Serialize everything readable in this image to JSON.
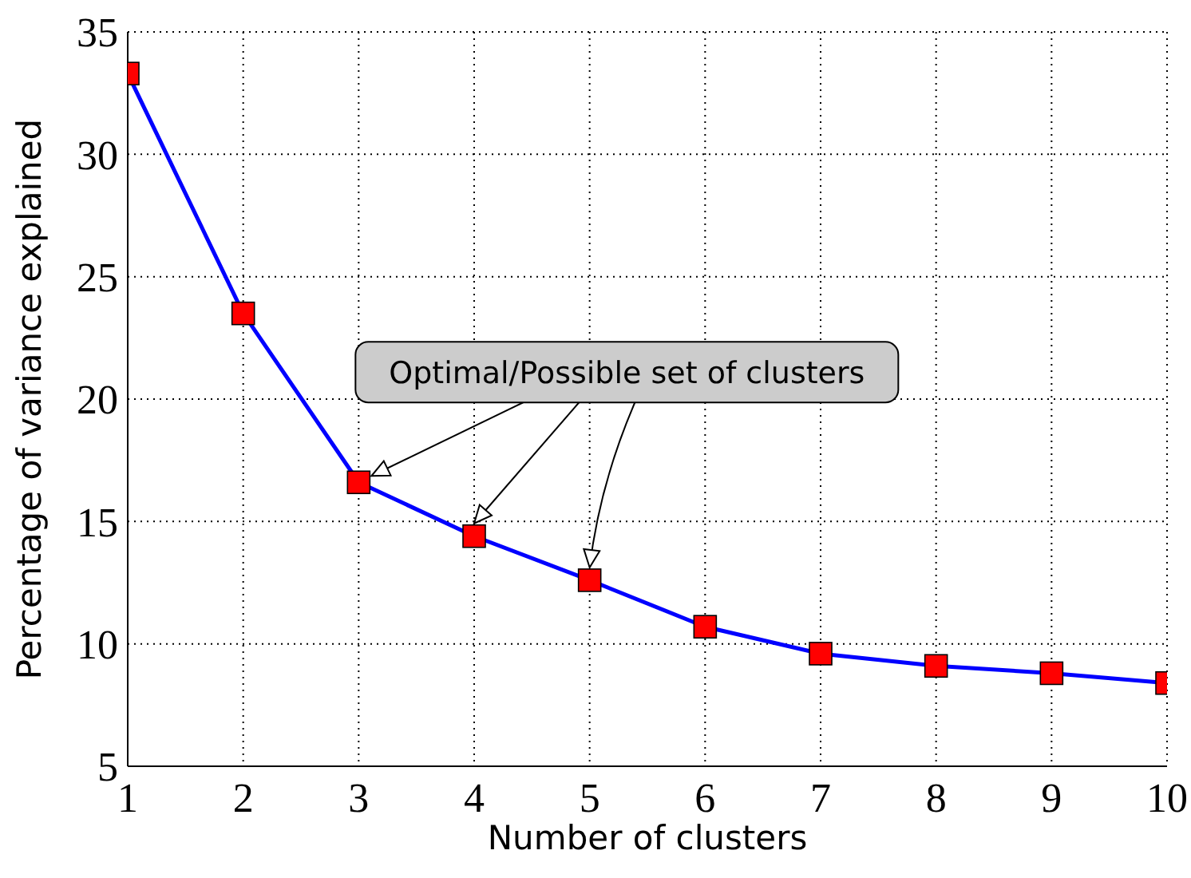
{
  "chart_data": {
    "type": "line",
    "xlabel": "Number of clusters",
    "ylabel": "Percentage of variance explained",
    "x": [
      1,
      2,
      3,
      4,
      5,
      6,
      7,
      8,
      9,
      10
    ],
    "series": [
      {
        "color": "#0000ff",
        "values": [
          33.3,
          23.5,
          16.6,
          14.4,
          12.6,
          10.7,
          9.6,
          9.1,
          8.8,
          8.4
        ]
      }
    ],
    "xlim": [
      1,
      10
    ],
    "xticks": [
      1,
      2,
      3,
      4,
      5,
      6,
      7,
      8,
      9,
      10
    ],
    "ylim": [
      5,
      35
    ],
    "yticks": [
      5,
      10,
      15,
      20,
      25,
      30,
      35
    ],
    "grid": true,
    "marker": "square",
    "line_style": "solid",
    "annotations": [
      {
        "text": "Optimal/Possible set of clusters",
        "x": 3,
        "y": 16.6
      }
    ]
  }
}
